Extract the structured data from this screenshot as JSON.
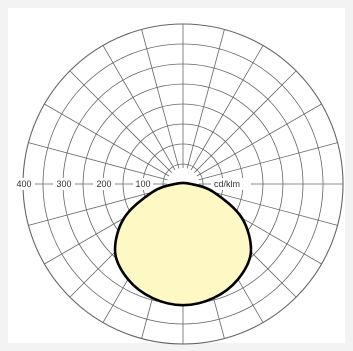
{
  "chart_data": {
    "type": "polar",
    "title": "",
    "unit": "cd/klm",
    "radial_axis": {
      "ticks": [
        100,
        200,
        300,
        400
      ],
      "labels": [
        "100",
        "200",
        "300",
        "400"
      ],
      "max": 400
    },
    "angular_grid_step_deg": 15,
    "grid": true,
    "series": [
      {
        "angles_deg": [
          0,
          15,
          30,
          45,
          60,
          75,
          90
        ],
        "values": [
          303,
          295,
          275,
          240,
          170,
          80,
          20
        ],
        "symmetric": true
      }
    ]
  },
  "colors": {
    "grid": "#666666",
    "fill": "#fdf8c4",
    "curve": "#000000",
    "background": "#f3f3f3"
  }
}
